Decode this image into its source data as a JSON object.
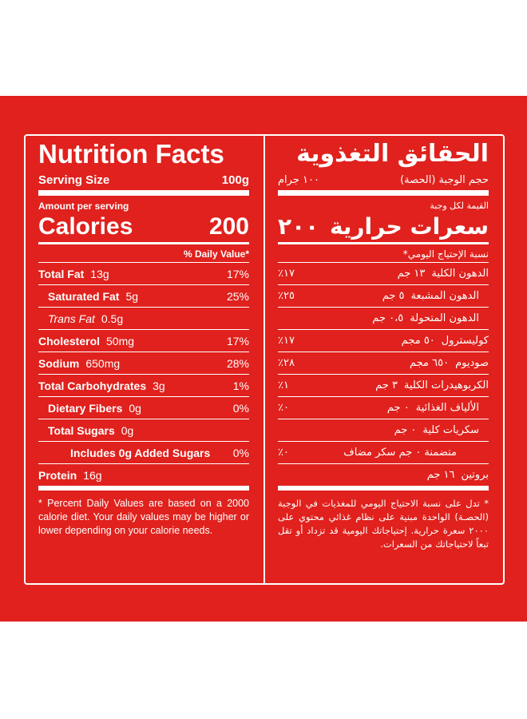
{
  "english": {
    "title": "Nutrition Facts",
    "serving_label": "Serving Size",
    "serving_value": "100g",
    "amount_per_serving": "Amount per serving",
    "calories_label": "Calories",
    "calories_value": "200",
    "daily_value_header": "% Daily Value*",
    "rows": [
      {
        "name": "Total Fat",
        "amount": "13g",
        "dv": "17%"
      },
      {
        "name": "Saturated Fat",
        "amount": "5g",
        "dv": "25%"
      },
      {
        "name": "Trans Fat",
        "amount": "0.5g"
      },
      {
        "name": "Cholesterol",
        "amount": "50mg",
        "dv": "17%"
      },
      {
        "name": "Sodium",
        "amount": "650mg",
        "dv": "28%"
      },
      {
        "name": "Total Carbohydrates",
        "amount": "3g",
        "dv": "1%"
      },
      {
        "name": "Dietary Fibers",
        "amount": "0g",
        "dv": "0%"
      },
      {
        "name": "Total Sugars",
        "amount": "0g"
      },
      {
        "name": "Includes 0g Added Sugars",
        "dv": "0%"
      },
      {
        "name": "Protein",
        "amount": "16g"
      }
    ],
    "footnote": "* Percent Daily Values are based on a 2000 calorie diet. Your daily values may be higher or lower depending on your calorie needs."
  },
  "arabic": {
    "title": "الحقائق التغذوية",
    "serving_label": "حجم الوجبة (الحصة)",
    "serving_value": "١٠٠ جرام",
    "amount_per_serving": "القيمة لكل وجبة",
    "calories_label": "سعرات حرارية",
    "calories_value": "٢٠٠",
    "daily_value_header": "نسبة الإحتياج اليومي*",
    "rows": [
      {
        "name": "الدهون الكلية",
        "amount": "١٣ جم",
        "dv": "١٧٪"
      },
      {
        "name": "الدهون المشبعة",
        "amount": "٥ جم",
        "dv": "٢٥٪"
      },
      {
        "name": "الدهون المتحولة",
        "amount": "٠،٥ جم"
      },
      {
        "name": "كوليسترول",
        "amount": "٥٠ مجم",
        "dv": "١٧٪"
      },
      {
        "name": "صوديوم",
        "amount": "٦٥٠ مجم",
        "dv": "٢٨٪"
      },
      {
        "name": "الكربوهيدرات الكلية",
        "amount": "٣ جم",
        "dv": "١٪"
      },
      {
        "name": "الألياف الغذائية",
        "amount": "٠ جم",
        "dv": "٠٪"
      },
      {
        "name": "سكريات كلية",
        "amount": "٠ جم"
      },
      {
        "name": "متضمنة ٠ جم سكر مضاف",
        "dv": "٠٪"
      },
      {
        "name": "بروتين",
        "amount": "١٦ جم"
      }
    ],
    "footnote": "* تدل على نسبة الاحتياج اليومي للمغذيات في الوجبة (الحصـة) الواحدة مبنية على نظام غذائي محتوي على ٢٠٠٠ سعرة حرارية. إحتياجاتك اليومية قد تزداد أو تقل تبعاً لاحتياجاتك من السعرات."
  }
}
